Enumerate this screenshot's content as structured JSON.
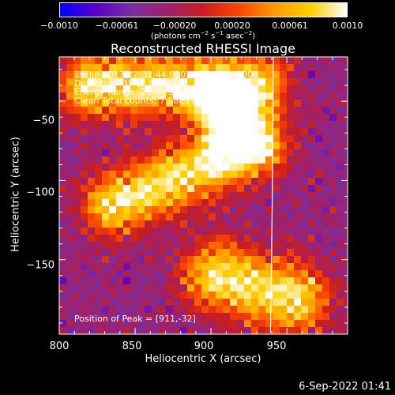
{
  "colorbar": {
    "ticks": [
      "−0.0010",
      "−0.00061",
      "−0.00020",
      "0.00020",
      "0.00061",
      "0.0010"
    ],
    "units": "(photons cm",
    "units_exp1": "−2",
    "units_mid": " s",
    "units_exp2": "−1",
    "units_end": " asec",
    "units_exp3": "−2",
    "units_close": ")"
  },
  "title": "Reconstructed RHESSI Image",
  "annotations": {
    "line1": "16-Jul-2017 22:31:44.000 to 22:37:44.000",
    "line2": "Detectors: 3F 6F 8F, Att 0",
    "line3": "Energy Range: 25.0 - 50.0 keV",
    "line4": "Clean    Total counts: 7.58E+03",
    "peak": "Position of Peak = [911,-32]"
  },
  "timestamp": "6-Sep-2022 01:41",
  "chart_data": {
    "type": "heatmap",
    "title": "Reconstructed RHESSI Image",
    "xlabel": "Heliocentric X (arcsec)",
    "ylabel": "Heliocentric Y (arcsec)",
    "xlim": [
      800,
      990
    ],
    "ylim": [
      -197,
      -22
    ],
    "xticks": [
      800,
      850,
      900,
      950
    ],
    "yticks": [
      -50,
      -100,
      -150
    ],
    "color_range": [
      -0.001,
      0.001
    ],
    "colormap": [
      "#0000ff",
      "#5a00c8",
      "#7a2ea0",
      "#a0206a",
      "#c81e1e",
      "#ff4500",
      "#ff9a00",
      "#ffd000",
      "#ffffff"
    ],
    "peak_position": [
      911,
      -32
    ]
  }
}
